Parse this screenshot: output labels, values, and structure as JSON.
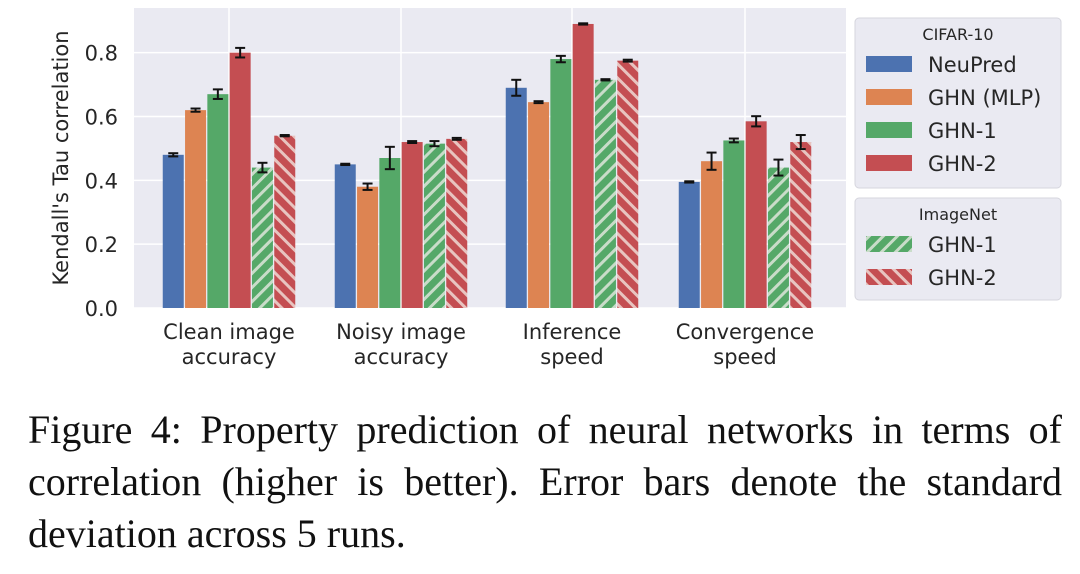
{
  "chart_data": {
    "type": "bar",
    "ylabel": "Kendall's Tau correlation",
    "ylim": [
      0,
      0.94
    ],
    "yticks": [
      "0.0",
      "0.2",
      "0.4",
      "0.6",
      "0.8"
    ],
    "categories": [
      [
        "Clean image",
        "accuracy"
      ],
      [
        "Noisy image",
        "accuracy"
      ],
      [
        "Inference",
        "speed"
      ],
      [
        "Convergence",
        "speed"
      ]
    ],
    "series": [
      {
        "name": "NeuPred",
        "group": "CIFAR-10",
        "color": "#4c72b0",
        "hatch": false,
        "values": [
          0.48,
          0.45,
          0.69,
          0.395
        ],
        "errors": [
          0.005,
          0.002,
          0.025,
          0.002
        ]
      },
      {
        "name": "GHN (MLP)",
        "group": "CIFAR-10",
        "color": "#dd8452",
        "hatch": false,
        "values": [
          0.62,
          0.38,
          0.645,
          0.46
        ],
        "errors": [
          0.005,
          0.01,
          0.003,
          0.027
        ]
      },
      {
        "name": "GHN-1",
        "group": "CIFAR-10",
        "color": "#55a868",
        "hatch": false,
        "values": [
          0.67,
          0.47,
          0.78,
          0.525
        ],
        "errors": [
          0.015,
          0.035,
          0.01,
          0.006
        ]
      },
      {
        "name": "GHN-2",
        "group": "CIFAR-10",
        "color": "#c44e52",
        "hatch": false,
        "values": [
          0.8,
          0.52,
          0.89,
          0.585
        ],
        "errors": [
          0.015,
          0.003,
          0.002,
          0.016
        ]
      },
      {
        "name": "GHN-1",
        "group": "ImageNet",
        "color": "#55a868",
        "hatch": true,
        "values": [
          0.44,
          0.515,
          0.715,
          0.44
        ],
        "errors": [
          0.015,
          0.008,
          0.002,
          0.025
        ]
      },
      {
        "name": "GHN-2",
        "group": "ImageNet",
        "color": "#c44e52",
        "hatch": true,
        "values": [
          0.54,
          0.53,
          0.775,
          0.52
        ],
        "errors": [
          0.002,
          0.003,
          0.003,
          0.022
        ]
      }
    ],
    "legend": [
      {
        "title": "CIFAR-10",
        "placement": "right-top"
      },
      {
        "title": "ImageNet",
        "placement": "right-middle"
      }
    ],
    "grid": true
  },
  "caption": "Figure 4:  Property prediction of neural networks in terms of correlation (higher is better). Error bars denote the standard deviation across 5 runs."
}
